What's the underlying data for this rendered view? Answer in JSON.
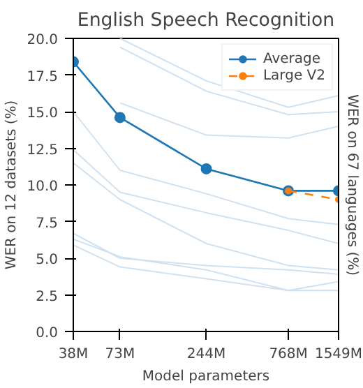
{
  "chart_data": {
    "type": "line",
    "title": "English Speech Recognition",
    "xlabel": "Model parameters",
    "ylabel": "WER on 12 datasets (%)",
    "y2label": "WER on 67 languages (%)",
    "log": "x",
    "xlim": [
      38,
      1549
    ],
    "xticks": [
      {
        "value": 38,
        "label": "38M"
      },
      {
        "value": 73,
        "label": "73M"
      },
      {
        "value": 244,
        "label": "244M"
      },
      {
        "value": 768,
        "label": "768M"
      },
      {
        "value": 1549,
        "label": "1549M"
      }
    ],
    "ylim": [
      0,
      20
    ],
    "yticks": [
      {
        "value": 0,
        "label": "0.0"
      },
      {
        "value": 2.5,
        "label": "2.5"
      },
      {
        "value": 5,
        "label": "5.0"
      },
      {
        "value": 7.5,
        "label": "7.5"
      },
      {
        "value": 10,
        "label": "10.0"
      },
      {
        "value": 12.5,
        "label": "12.5"
      },
      {
        "value": 15,
        "label": "15.0"
      },
      {
        "value": 17.5,
        "label": "17.5"
      },
      {
        "value": 20,
        "label": "20.0"
      }
    ],
    "x": [
      38,
      73,
      244,
      768,
      1549
    ],
    "grid": false,
    "legend": "top right",
    "series": [
      {
        "color": "#d0e1f0",
        "marker": "none",
        "values": [
          null,
          20.0,
          17.1,
          15.3,
          16.1
        ]
      },
      {
        "color": "#d0e1f0",
        "marker": "none",
        "values": [
          null,
          19.4,
          16.4,
          14.8,
          15.0
        ]
      },
      {
        "color": "#d0e1f0",
        "marker": "none",
        "values": [
          null,
          15.6,
          13.4,
          13.2,
          14.0
        ]
      },
      {
        "color": "#d0e1f0",
        "marker": "none",
        "values": [
          15.0,
          11.0,
          9.4,
          7.7,
          7.3
        ]
      },
      {
        "color": "#d0e1f0",
        "marker": "none",
        "values": [
          12.4,
          9.5,
          8.1,
          6.9,
          6.0
        ]
      },
      {
        "color": "#d0e1f0",
        "marker": "none",
        "values": [
          11.5,
          9.0,
          6.0,
          4.5,
          4.2
        ]
      },
      {
        "color": "#d0e1f0",
        "marker": "none",
        "values": [
          6.7,
          5.0,
          4.5,
          4.2,
          3.9
        ]
      },
      {
        "color": "#d0e1f0",
        "marker": "none",
        "values": [
          6.3,
          5.1,
          4.2,
          2.8,
          3.4
        ]
      },
      {
        "color": "#d0e1f0",
        "marker": "none",
        "values": [
          5.9,
          4.4,
          3.6,
          2.8,
          2.8
        ]
      },
      {
        "name": "Average",
        "color": "#1f77b4",
        "marker": "circle",
        "line_style": "solid",
        "values": [
          18.4,
          14.6,
          11.1,
          9.6,
          9.6
        ]
      },
      {
        "name": "Large V2",
        "color": "#ff7f0e",
        "marker": "circle",
        "line_style": "dashed",
        "x": [
          768,
          1549
        ],
        "values": [
          9.6,
          9.0
        ]
      }
    ]
  }
}
